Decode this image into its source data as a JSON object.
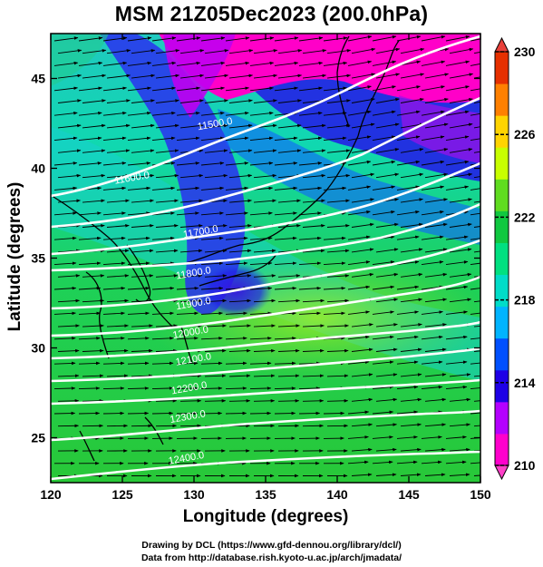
{
  "title": "MSM 21Z05Dec2023 (200.0hPa)",
  "x_axis": {
    "label": "Longitude (degrees)",
    "range": [
      120,
      150
    ],
    "ticks": [
      120,
      125,
      130,
      135,
      140,
      145,
      150
    ]
  },
  "y_axis": {
    "label": "Latitude  (degrees)",
    "range": [
      22.5,
      47.5
    ],
    "ticks": [
      25,
      30,
      35,
      40,
      45
    ]
  },
  "colorbar": {
    "range": [
      210,
      230
    ],
    "ticks": [
      210,
      214,
      218,
      222,
      226,
      230
    ],
    "colors": [
      "#ff00cc",
      "#b400ff",
      "#1e00e6",
      "#0050ff",
      "#00b4ff",
      "#00dcc8",
      "#00e080",
      "#10c840",
      "#60dc20",
      "#c8ff00",
      "#ffd400",
      "#ff8000",
      "#e63000"
    ]
  },
  "contours": {
    "color": "#ffffff",
    "labels": [
      {
        "text": "11500.0",
        "lon": 131.5,
        "lat": 42.3
      },
      {
        "text": "11600.0",
        "lon": 125.7,
        "lat": 39.3
      },
      {
        "text": "11700.0",
        "lon": 130.5,
        "lat": 36.3
      },
      {
        "text": "11800.0",
        "lon": 130.0,
        "lat": 34.0
      },
      {
        "text": "11900.0",
        "lon": 130.0,
        "lat": 32.3
      },
      {
        "text": "12000.0",
        "lon": 129.8,
        "lat": 30.7
      },
      {
        "text": "12100.0",
        "lon": 130.0,
        "lat": 29.2
      },
      {
        "text": "12200.0",
        "lon": 129.7,
        "lat": 27.6
      },
      {
        "text": "12300.0",
        "lon": 129.6,
        "lat": 26.0
      },
      {
        "text": "12400.0",
        "lon": 129.5,
        "lat": 23.7
      }
    ]
  },
  "wind_vectors": {
    "color": "#000000",
    "direction": "westerly"
  },
  "credits": {
    "line1": "Drawing by DCL (https://www.gfd-dennou.org/library/dcl/)",
    "line2": "Data from http://database.rish.kyoto-u.ac.jp/arch/jmadata/"
  }
}
